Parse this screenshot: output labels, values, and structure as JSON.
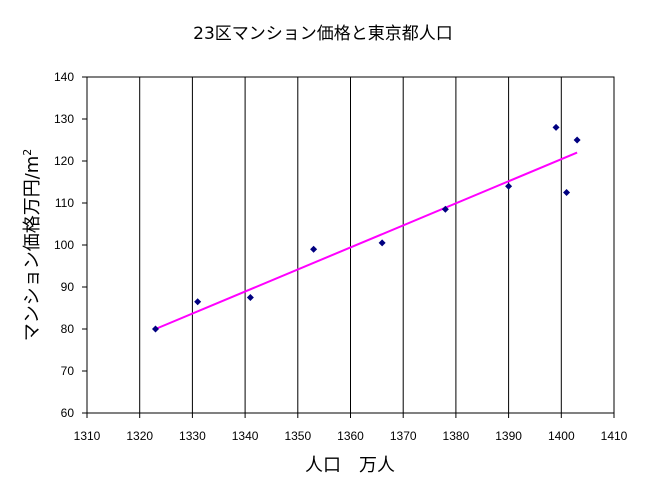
{
  "chart_data": {
    "type": "scatter",
    "title": "23区マンション価格と東京都人口",
    "xlabel": "人口　万人",
    "ylabel": "マンション価格万円/m",
    "ylabel_superscript": "2",
    "xlim": [
      1310,
      1410
    ],
    "ylim": [
      60,
      140
    ],
    "xticks": [
      "1310",
      "1320",
      "1330",
      "1340",
      "1350",
      "1360",
      "1370",
      "1380",
      "1390",
      "1400",
      "1410"
    ],
    "yticks": [
      "60",
      "70",
      "80",
      "90",
      "100",
      "110",
      "120",
      "130",
      "140"
    ],
    "grid": {
      "horizontal": false,
      "vertical": true
    },
    "legend": "none",
    "series": [
      {
        "points": [
          [
            1323,
            80.0
          ],
          [
            1331,
            86.5
          ],
          [
            1341,
            87.5
          ],
          [
            1353,
            99.0
          ],
          [
            1366,
            100.5
          ],
          [
            1378,
            108.5
          ],
          [
            1390,
            114.0
          ],
          [
            1399,
            128.0
          ],
          [
            1401,
            112.5
          ],
          [
            1403,
            125.0
          ]
        ]
      }
    ],
    "trendline": {
      "type": "linear",
      "x": [
        1323,
        1403
      ],
      "y": [
        80.0,
        122.0
      ]
    },
    "colors": {
      "marker": "#000080",
      "trendline": "#ff00ff",
      "axes": "#000000",
      "grid": "#000000"
    }
  }
}
